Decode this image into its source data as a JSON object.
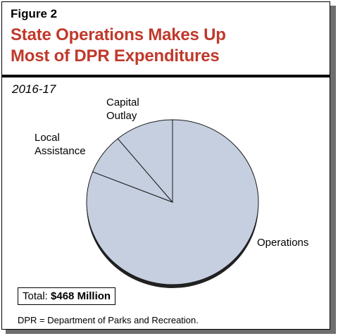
{
  "figure": {
    "label": "Figure 2",
    "title_line1": "State Operations Makes Up",
    "title_line2": "Most of DPR Expenditures",
    "subtitle": "2016-17",
    "total_label": "Total:",
    "total_value": "$468 Million",
    "footnote": "DPR = Department of Parks and Recreation."
  },
  "colors": {
    "title": "#c0392b",
    "slice_fill": "#c5cfe0",
    "slice_side": "#222222",
    "shadow": "#6e6e6e"
  },
  "chart_data": {
    "type": "pie",
    "title": "State Operations Makes Up Most of DPR Expenditures",
    "subtitle": "2016-17",
    "slices": [
      {
        "label": "Operations",
        "value": 81
      },
      {
        "label": "Local Assistance",
        "value": 8
      },
      {
        "label": "Capital Outlay",
        "value": 11
      }
    ],
    "total": "$468 Million",
    "start_angle_deg": 0,
    "direction": "clockwise"
  }
}
